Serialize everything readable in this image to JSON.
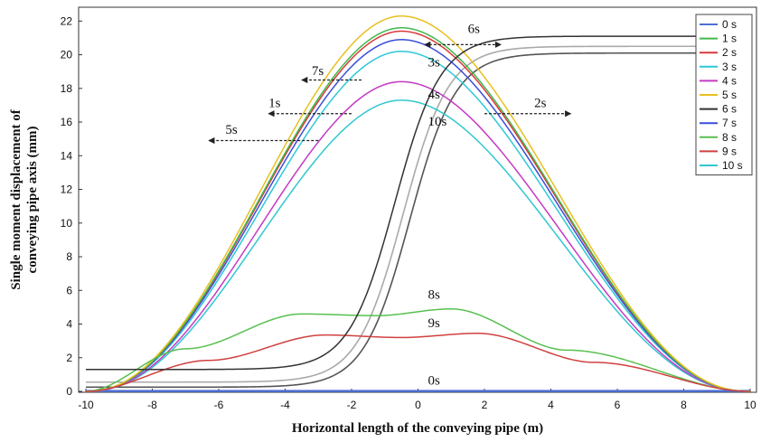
{
  "chart_data": {
    "type": "line",
    "xlabel": "Horizontal length of the conveying pipe (m)",
    "ylabel_line1": "Single moment displacement of",
    "ylabel_line2": "conveying pipe axis (mm)",
    "xlim": [
      -10,
      10
    ],
    "ylim": [
      0,
      22.5
    ],
    "x_ticks": [
      -10,
      -8,
      -6,
      -4,
      -2,
      0,
      2,
      4,
      6,
      8,
      10
    ],
    "y_ticks": [
      0,
      2,
      4,
      6,
      8,
      10,
      12,
      14,
      16,
      18,
      20,
      22
    ],
    "grid": false,
    "legend_position": "top-right",
    "series": [
      {
        "name": "0 s",
        "color": "#4f6fd6",
        "shape": "flat",
        "value": 0.02
      },
      {
        "name": "1 s",
        "color": "#40b84c",
        "shape": "bell",
        "peak": 21.6,
        "center": -0.5
      },
      {
        "name": "2 s",
        "color": "#d83a3a",
        "shape": "bell",
        "peak": 21.4,
        "center": -0.5
      },
      {
        "name": "3 s",
        "color": "#2ec8d8",
        "shape": "bell",
        "peak": 20.2,
        "center": -0.5
      },
      {
        "name": "4 s",
        "color": "#c43ac4",
        "shape": "bell",
        "peak": 18.4,
        "center": -0.5
      },
      {
        "name": "5 s",
        "color": "#e8c020",
        "shape": "bell",
        "peak": 22.3,
        "center": -0.5
      },
      {
        "name": "6 s",
        "color": "#333333",
        "shape": "sigmoid",
        "low": 1.3,
        "high": 21.1,
        "mid": -0.7
      },
      {
        "name": "7 s",
        "color": "#3a4ed8",
        "shape": "bell",
        "peak": 20.9,
        "center": -0.5
      },
      {
        "name": "8 s",
        "color": "#58c050",
        "shape": "double",
        "peak1": 4.6,
        "x1": -3.5,
        "peak2": 4.9,
        "x2": 1.0,
        "dip": 4.5
      },
      {
        "name": "9 s",
        "color": "#d04040",
        "shape": "double",
        "peak1": 3.35,
        "x1": -2.8,
        "peak2": 3.45,
        "x2": 1.8,
        "dip": 3.2
      },
      {
        "name": "10 s",
        "color": "#30c8d0",
        "shape": "bell",
        "peak": 17.3,
        "center": -0.5
      }
    ],
    "extra_curves": [
      {
        "color": "#aaaaaa",
        "shape": "sigmoid",
        "low": 0.55,
        "high": 20.5,
        "mid": -0.45
      },
      {
        "color": "#555555",
        "shape": "sigmoid",
        "low": 0.25,
        "high": 20.1,
        "mid": -0.25
      }
    ],
    "annotations": [
      {
        "text": "6s",
        "x": 1.5,
        "y": 21.3
      },
      {
        "text": "7s",
        "x": -3.2,
        "y": 18.8
      },
      {
        "text": "3s",
        "x": 0.3,
        "y": 19.3
      },
      {
        "text": "4s",
        "x": 0.3,
        "y": 17.4
      },
      {
        "text": "1s",
        "x": -4.5,
        "y": 16.9
      },
      {
        "text": "2s",
        "x": 3.5,
        "y": 16.9
      },
      {
        "text": "10s",
        "x": 0.3,
        "y": 15.8
      },
      {
        "text": "5s",
        "x": -5.8,
        "y": 15.3
      },
      {
        "text": "8s",
        "x": 0.3,
        "y": 5.5
      },
      {
        "text": "9s",
        "x": 0.3,
        "y": 3.8
      },
      {
        "text": "0s",
        "x": 0.3,
        "y": 0.4
      }
    ],
    "arrows": [
      {
        "x_from": 0.2,
        "x_to": 2.5,
        "y": 20.6,
        "heads": "both"
      },
      {
        "x_from": -1.7,
        "x_to": -3.5,
        "y": 18.5,
        "heads": "end"
      },
      {
        "x_from": -2.0,
        "x_to": -4.5,
        "y": 16.5,
        "heads": "end"
      },
      {
        "x_from": 2.0,
        "x_to": 4.6,
        "y": 16.5,
        "heads": "end"
      },
      {
        "x_from": -3.0,
        "x_to": -6.3,
        "y": 14.9,
        "heads": "end"
      }
    ]
  }
}
